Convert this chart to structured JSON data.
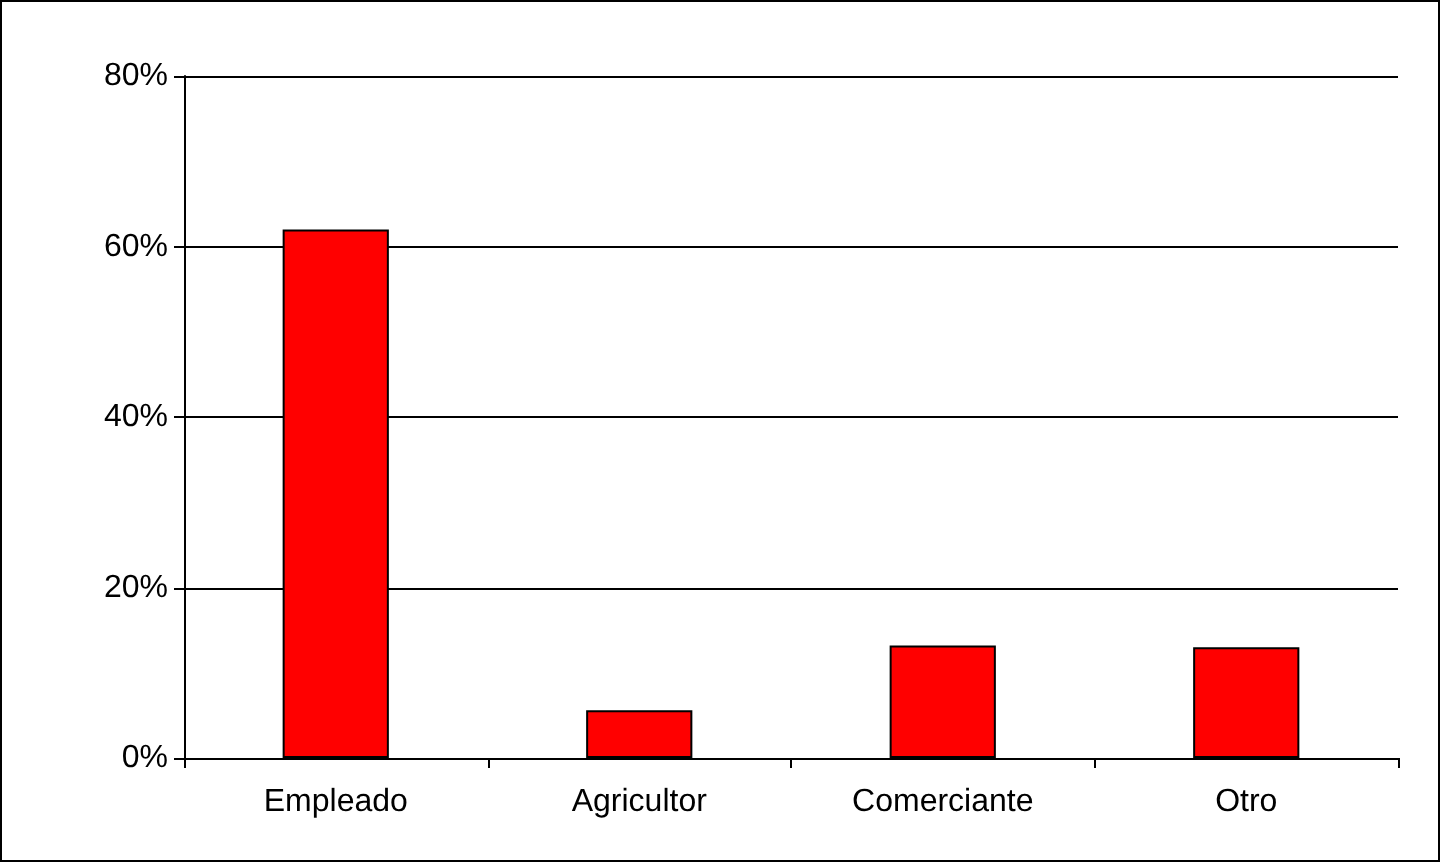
{
  "chart_data": {
    "type": "bar",
    "categories": [
      "Empleado",
      "Agricultor",
      "Comerciante",
      "Otro"
    ],
    "values": [
      62,
      5.6,
      13.2,
      13
    ],
    "color": "#ff0000",
    "ylim": [
      0,
      80
    ],
    "yticks": [
      {
        "value": 0,
        "label": "0%"
      },
      {
        "value": 20,
        "label": "20%"
      },
      {
        "value": 40,
        "label": "40%"
      },
      {
        "value": 60,
        "label": "60%"
      },
      {
        "value": 80,
        "label": "80%"
      }
    ],
    "grid": "y"
  }
}
